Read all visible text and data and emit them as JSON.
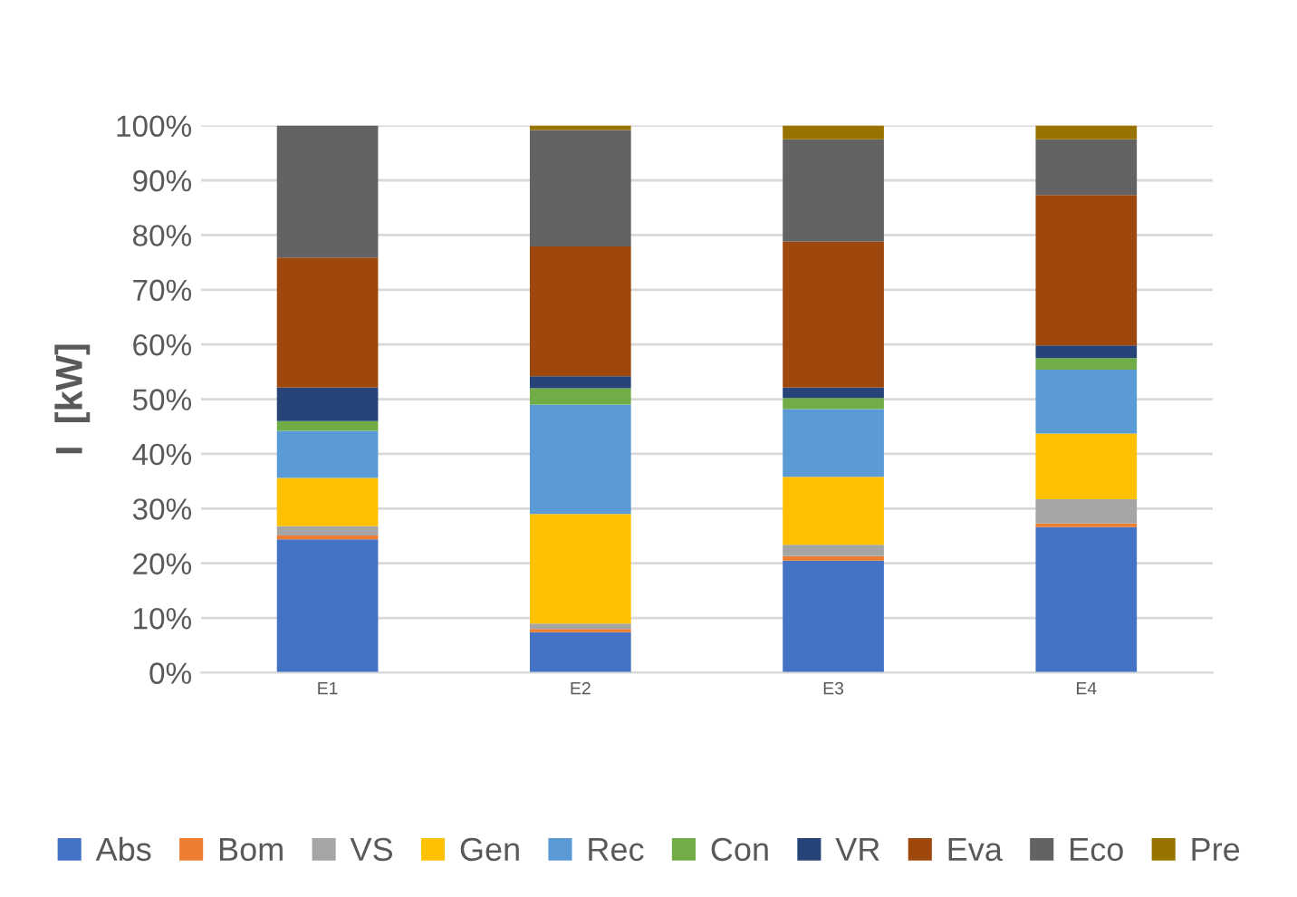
{
  "chart_data": {
    "type": "bar",
    "stacked": true,
    "ylabel": "I  [kW]",
    "categories": [
      "E1",
      "E2",
      "E3",
      "E4"
    ],
    "ylim": [
      0,
      100
    ],
    "yticks": [
      {
        "value": 0,
        "label": "0%"
      },
      {
        "value": 10,
        "label": "10%"
      },
      {
        "value": 20,
        "label": "20%"
      },
      {
        "value": 30,
        "label": "30%"
      },
      {
        "value": 40,
        "label": "40%"
      },
      {
        "value": 50,
        "label": "50%"
      },
      {
        "value": 60,
        "label": "60%"
      },
      {
        "value": 70,
        "label": "70%"
      },
      {
        "value": 80,
        "label": "80%"
      },
      {
        "value": 90,
        "label": "90%"
      },
      {
        "value": 100,
        "label": "100%"
      }
    ],
    "grid": "y",
    "legend": "bottom",
    "series": [
      {
        "name": "Abs",
        "color": "#4472c4",
        "values": [
          24.4,
          7.4,
          20.5,
          26.6
        ]
      },
      {
        "name": "Bom",
        "color": "#ed7d31",
        "values": [
          0.7,
          0.6,
          0.8,
          0.7
        ]
      },
      {
        "name": "VS",
        "color": "#a5a5a5",
        "values": [
          1.7,
          1.0,
          2.1,
          4.4
        ]
      },
      {
        "name": "Gen",
        "color": "#ffc000",
        "values": [
          8.8,
          20.0,
          12.4,
          12.0
        ]
      },
      {
        "name": "Rec",
        "color": "#5b9bd5",
        "values": [
          8.6,
          20.0,
          12.4,
          11.7
        ]
      },
      {
        "name": "Con",
        "color": "#70ad47",
        "values": [
          1.8,
          3.0,
          2.0,
          2.1
        ]
      },
      {
        "name": "VR",
        "color": "#264478",
        "values": [
          6.1,
          2.2,
          1.9,
          2.3
        ]
      },
      {
        "name": "Eva",
        "color": "#9e480e",
        "values": [
          23.8,
          23.7,
          26.7,
          27.5
        ]
      },
      {
        "name": "Eco",
        "color": "#636363",
        "values": [
          24.1,
          21.3,
          18.7,
          10.2
        ]
      },
      {
        "name": "Pre",
        "color": "#997300",
        "values": [
          0,
          0.8,
          2.5,
          2.5
        ]
      }
    ]
  }
}
